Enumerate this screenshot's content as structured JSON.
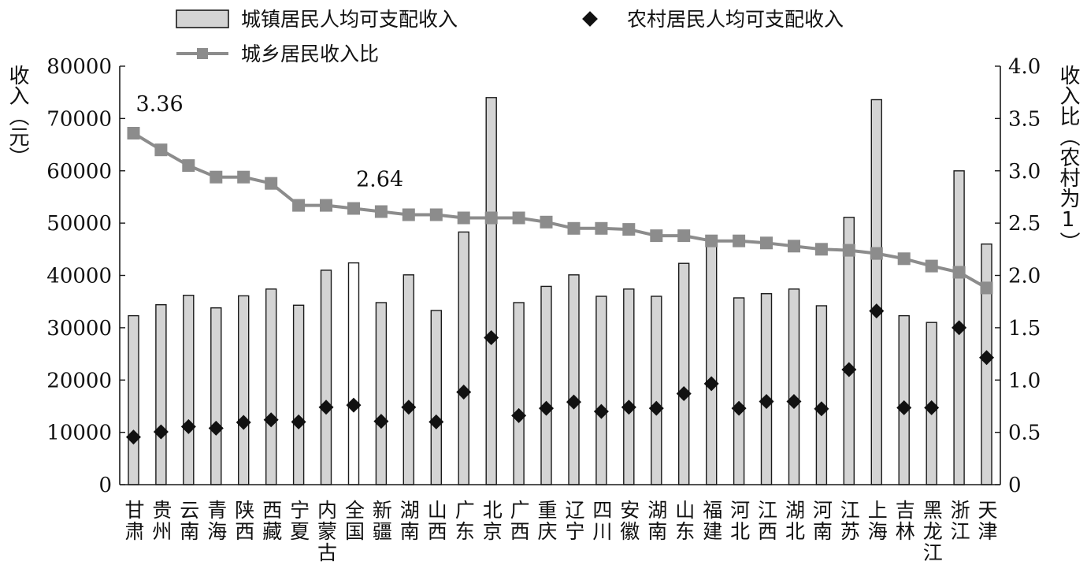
{
  "chart_data": {
    "type": "bar",
    "categories": [
      "甘肃",
      "贵州",
      "云南",
      "青海",
      "陕西",
      "西藏",
      "宁夏",
      "内蒙古",
      "全国",
      "新疆",
      "湖南",
      "山西",
      "广东",
      "北京",
      "广西",
      "重庆",
      "辽宁",
      "四川",
      "安徽",
      "湖南",
      "山东",
      "福建",
      "河北",
      "江西",
      "湖北",
      "河南",
      "江苏",
      "上海",
      "吉林",
      "黑龙江",
      "浙江",
      "天津"
    ],
    "highlight_category": "全国",
    "series": [
      {
        "name": "城镇居民人均可支配收入",
        "kind": "bar",
        "axis": "left",
        "values": [
          32300,
          34400,
          36200,
          33800,
          36100,
          37400,
          34300,
          41000,
          42400,
          34800,
          40100,
          33300,
          48300,
          74000,
          34800,
          37900,
          40100,
          36000,
          37400,
          36000,
          42300,
          47400,
          35700,
          36500,
          37400,
          34200,
          51100,
          73600,
          32300,
          31000,
          60000,
          46000
        ]
      },
      {
        "name": "农村居民人均可支配收入",
        "kind": "scatter",
        "axis": "left",
        "values": [
          9100,
          10100,
          11100,
          10800,
          11900,
          12400,
          12000,
          14800,
          15200,
          12100,
          14800,
          12000,
          17700,
          28100,
          13200,
          14600,
          15800,
          14000,
          14800,
          14600,
          17400,
          19300,
          14600,
          15900,
          15900,
          14500,
          22000,
          33200,
          14700,
          14700,
          30000,
          24300
        ]
      },
      {
        "name": "城乡居民收入比",
        "kind": "line",
        "axis": "right",
        "values": [
          3.36,
          3.2,
          3.05,
          2.94,
          2.94,
          2.88,
          2.67,
          2.67,
          2.64,
          2.61,
          2.58,
          2.58,
          2.55,
          2.55,
          2.55,
          2.51,
          2.45,
          2.45,
          2.44,
          2.38,
          2.38,
          2.33,
          2.33,
          2.31,
          2.28,
          2.25,
          2.24,
          2.21,
          2.16,
          2.09,
          2.03,
          1.88
        ]
      }
    ],
    "left_axis": {
      "title": "收入（元）",
      "ylim": [
        0,
        80000
      ],
      "ticks": [
        "0",
        "10000",
        "20000",
        "30000",
        "40000",
        "50000",
        "60000",
        "70000",
        "80000"
      ]
    },
    "right_axis": {
      "title": "收入比（农村为1）",
      "ylim": [
        0,
        4.0
      ],
      "ticks": [
        "0",
        "0.5",
        "1.0",
        "1.5",
        "2.0",
        "2.5",
        "3.0",
        "3.5",
        "4.0"
      ]
    },
    "annotations": [
      {
        "text": "3.36",
        "category": "甘肃"
      },
      {
        "text": "2.64",
        "category": "全国"
      }
    ],
    "legend": {
      "position": "top"
    },
    "grid": false
  },
  "colors": {
    "bar_fill": "#d4d4d4",
    "highlight_bar_fill": "#ffffff",
    "bar_stroke": "#1a1a1a",
    "line": "#8c8c8c",
    "diamond": "#111111",
    "axis": "#1a1a1a"
  }
}
